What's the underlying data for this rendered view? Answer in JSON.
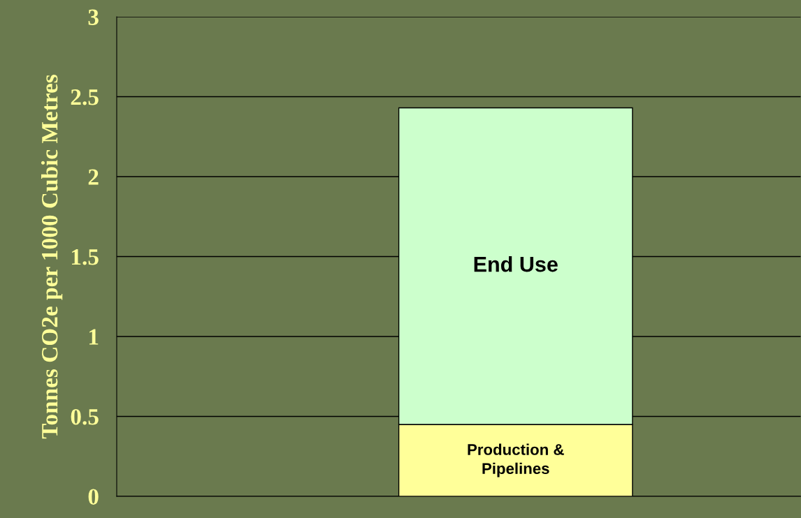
{
  "chart_data": {
    "type": "bar",
    "stacked": true,
    "ylabel": "Tonnes CO2e per 1000 Cubic Metres",
    "categories": [
      null
    ],
    "series": [
      {
        "name": "Production &\nPipelines",
        "color": "#ffff99",
        "values": [
          0.45
        ]
      },
      {
        "name": "End Use",
        "color": "#ccffcc",
        "values": [
          1.98
        ]
      }
    ],
    "ylim": [
      0,
      3
    ],
    "yticks": [
      0,
      0.5,
      1,
      1.5,
      2,
      2.5,
      3
    ],
    "grid": "y",
    "legend": false
  }
}
